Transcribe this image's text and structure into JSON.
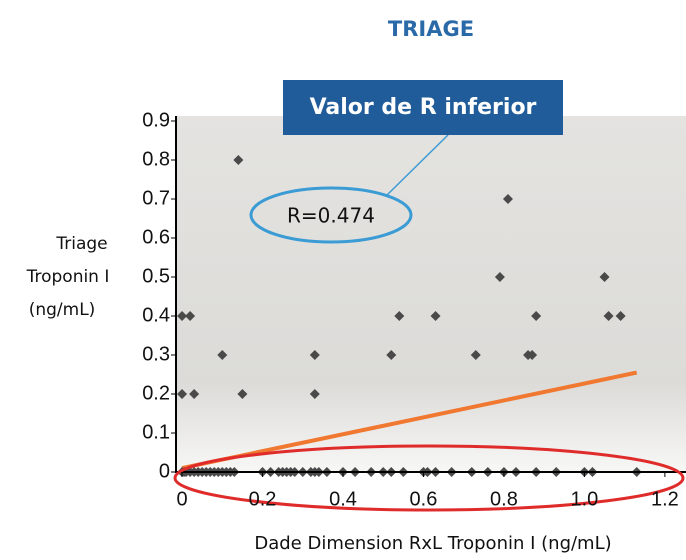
{
  "chart_data": {
    "type": "scatter",
    "title": "TRIAGE",
    "callout": "Valor de R inferior",
    "annotation": "R=0.474",
    "y_label": [
      "Triage",
      "Troponin I",
      "(ng/mL)"
    ],
    "x_label": "Dade Dimension RxL Troponin I (ng/mL)",
    "xlim": [
      -0.02,
      1.25
    ],
    "ylim": [
      0,
      0.9
    ],
    "xticks": [
      0,
      0.2,
      0.4,
      0.6,
      0.8,
      {
        "value": 1,
        "label": "1.0"
      },
      1.2
    ],
    "yticks": [
      0,
      0.1,
      0.2,
      0.3,
      0.4,
      0.5,
      0.6,
      0.7,
      0.8,
      0.9
    ],
    "series": [
      {
        "color": "#4a4a4a",
        "x": [
          0.14,
          0.81,
          0.79,
          1.05,
          0,
          0.02,
          0.54,
          0.63,
          0.88,
          1.06,
          1.09,
          0.1,
          0.33,
          0.52,
          0.73,
          0.86,
          0.87,
          0,
          0.03,
          0.15,
          0.33,
          0,
          0.005,
          0.01,
          0.02,
          0.03,
          0.04,
          0.05,
          0.06,
          0.07,
          0.08,
          0.09,
          0.1,
          0.11,
          0.12,
          0.13,
          0.2,
          0.22,
          0.24,
          0.25,
          0.26,
          0.27,
          0.28,
          0.3,
          0.32,
          0.33,
          0.34,
          0.36,
          0.4,
          0.43,
          0.47,
          0.5,
          0.52,
          0.55,
          0.6,
          0.61,
          0.63,
          0.67,
          0.72,
          0.76,
          0.8,
          0.83,
          0.88,
          0.93,
          1.0,
          1.02,
          1.13
        ],
        "y": [
          0.8,
          0.7,
          0.5,
          0.5,
          0.4,
          0.4,
          0.4,
          0.4,
          0.4,
          0.4,
          0.4,
          0.3,
          0.3,
          0.3,
          0.3,
          0.3,
          0.3,
          0.2,
          0.2,
          0.2,
          0.2,
          0,
          0,
          0,
          0,
          0,
          0,
          0,
          0,
          0,
          0,
          0,
          0,
          0,
          0,
          0,
          0,
          0,
          0,
          0,
          0,
          0,
          0,
          0,
          0,
          0,
          0,
          0,
          0,
          0,
          0,
          0,
          0,
          0,
          0,
          0,
          0,
          0,
          0,
          0,
          0,
          0,
          0,
          0,
          0,
          0,
          0
        ]
      }
    ],
    "trendline": {
      "color": "#f07830",
      "x": [
        0,
        1.13
      ],
      "y": [
        0.01,
        0.255
      ]
    }
  }
}
